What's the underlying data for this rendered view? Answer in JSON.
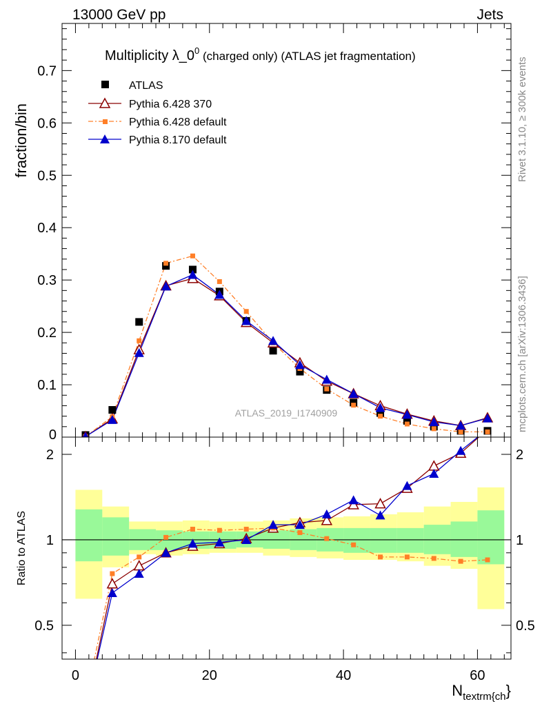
{
  "header": {
    "left": "13000 GeV pp",
    "right": "Jets"
  },
  "main_panel": {
    "title_main": "Multiplicity λ_0",
    "title_sup": "0",
    "title_rest": " (charged only) (ATLAS jet fragmentation)",
    "ylabel": "fraction/bin",
    "watermark": "ATLAS_2019_I1740909",
    "side_top": "Rivet 3.1.10, ≥ 300k events",
    "side_bottom": "mcplots.cern.ch [arXiv:1306.3436]"
  },
  "ratio_panel": {
    "ylabel": "Ratio to ATLAS"
  },
  "x_axis": {
    "label_main": "N",
    "label_sub": "textrm{ch",
    "label_tail": "}",
    "range": [
      -2,
      65
    ],
    "ticks": [
      0,
      20,
      40,
      60
    ]
  },
  "colors": {
    "atlas": "#000000",
    "py6_370": "#8b0000",
    "py6_default": "#ff7f27",
    "py8_default": "#0000cc",
    "band_inner": "#99f999",
    "band_outer": "#ffff99"
  },
  "chart_data": {
    "type": "line",
    "title": "Multiplicity λ_0^0 (charged only) (ATLAS jet fragmentation)",
    "xlabel": "N_textrm{ch}",
    "ylabel": "fraction/bin",
    "xlim": [
      -2,
      65
    ],
    "ylim": [
      0,
      0.79
    ],
    "yticks": [
      0.1,
      0.2,
      0.3,
      0.4,
      0.5,
      0.6,
      0.7
    ],
    "ratio_ylim": [
      0.38,
      2.3
    ],
    "ratio_yticks": [
      0.5,
      1,
      2
    ],
    "legend_position": "top-left",
    "grid": false,
    "x": [
      1.5,
      5.5,
      9.5,
      13.5,
      17.5,
      21.5,
      25.5,
      29.5,
      33.5,
      37.5,
      41.5,
      45.5,
      49.5,
      53.5,
      57.5,
      61.5
    ],
    "bin_edges": [
      0,
      4,
      8,
      12,
      16,
      20,
      24,
      28,
      32,
      36,
      40,
      44,
      48,
      52,
      56,
      60,
      64
    ],
    "series": [
      {
        "name": "ATLAS",
        "marker": "square",
        "values": [
          0.004,
          0.052,
          0.22,
          0.327,
          0.32,
          0.278,
          0.222,
          0.165,
          0.125,
          0.09,
          0.066,
          0.046,
          0.031,
          0.02,
          0.012,
          0.012
        ]
      },
      {
        "name": "Pythia 6.428 370",
        "marker": "open-triangle",
        "values": [
          0.001,
          0.035,
          0.167,
          0.289,
          0.303,
          0.27,
          0.219,
          0.18,
          0.142,
          0.107,
          0.083,
          0.06,
          0.044,
          0.031,
          0.022,
          0.037
        ]
      },
      {
        "name": "Pythia 6.428 default",
        "marker": "small-square",
        "values": [
          0.001,
          0.039,
          0.184,
          0.332,
          0.346,
          0.297,
          0.24,
          0.18,
          0.131,
          0.092,
          0.061,
          0.04,
          0.025,
          0.016,
          0.01,
          0.01
        ]
      },
      {
        "name": "Pythia 8.170 default",
        "marker": "filled-triangle",
        "values": [
          0.001,
          0.033,
          0.161,
          0.288,
          0.31,
          0.272,
          0.222,
          0.184,
          0.138,
          0.11,
          0.083,
          0.056,
          0.043,
          0.029,
          0.022,
          0.036
        ]
      }
    ],
    "ratios": [
      {
        "name": "Pythia 6.428 370",
        "values": [
          0.25,
          0.7,
          0.81,
          0.9,
          0.95,
          0.97,
          1.01,
          1.1,
          1.15,
          1.17,
          1.33,
          1.34,
          1.52,
          1.82,
          2.02,
          2.45
        ]
      },
      {
        "name": "Pythia 6.428 default",
        "values": [
          0.27,
          0.76,
          0.87,
          1.02,
          1.09,
          1.08,
          1.09,
          1.1,
          1.06,
          1.01,
          0.96,
          0.87,
          0.87,
          0.86,
          0.84,
          0.85
        ]
      },
      {
        "name": "Pythia 8.170 default",
        "values": [
          0.25,
          0.65,
          0.76,
          0.9,
          0.97,
          0.98,
          1.0,
          1.13,
          1.13,
          1.23,
          1.38,
          1.22,
          1.55,
          1.71,
          2.06,
          2.45
        ]
      }
    ],
    "uncertainty_bands": {
      "inner": [
        [
          0.84,
          1.28
        ],
        [
          0.88,
          1.2
        ],
        [
          0.92,
          1.09
        ],
        [
          0.92,
          1.08
        ],
        [
          0.93,
          1.07
        ],
        [
          0.93,
          1.07
        ],
        [
          0.94,
          1.07
        ],
        [
          0.93,
          1.08
        ],
        [
          0.92,
          1.09
        ],
        [
          0.91,
          1.1
        ],
        [
          0.9,
          1.1
        ],
        [
          0.9,
          1.1
        ],
        [
          0.9,
          1.1
        ],
        [
          0.89,
          1.13
        ],
        [
          0.87,
          1.16
        ],
        [
          0.82,
          1.27
        ]
      ],
      "outer": [
        [
          0.62,
          1.5
        ],
        [
          0.8,
          1.31
        ],
        [
          0.89,
          1.16
        ],
        [
          0.88,
          1.16
        ],
        [
          0.89,
          1.17
        ],
        [
          0.9,
          1.16
        ],
        [
          0.9,
          1.16
        ],
        [
          0.88,
          1.17
        ],
        [
          0.87,
          1.19
        ],
        [
          0.86,
          1.2
        ],
        [
          0.85,
          1.21
        ],
        [
          0.85,
          1.23
        ],
        [
          0.84,
          1.25
        ],
        [
          0.81,
          1.31
        ],
        [
          0.79,
          1.36
        ],
        [
          0.57,
          1.53
        ]
      ]
    }
  }
}
